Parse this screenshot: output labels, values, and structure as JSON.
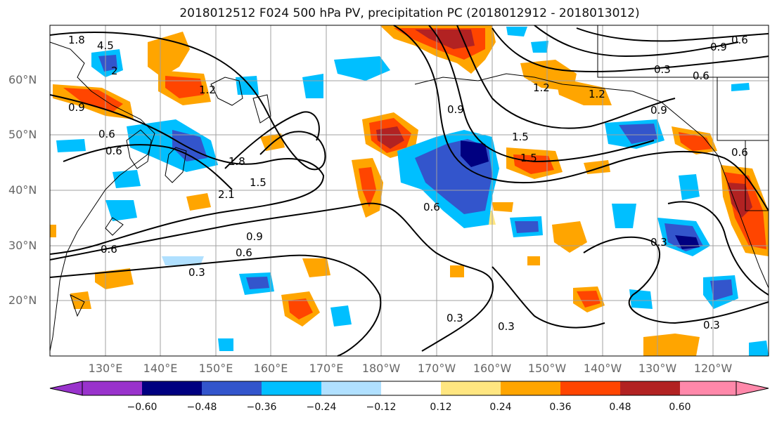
{
  "title": "2018012512 F024 500 hPa PV, precipitation PC (2018012912 - 2018013012)",
  "lat_labels": [
    "60°N",
    "50°N",
    "40°N",
    "30°N",
    "20°N"
  ],
  "lon_labels": [
    "130°E",
    "140°E",
    "150°E",
    "160°E",
    "170°E",
    "180°W",
    "170°W",
    "160°W",
    "150°W",
    "140°W",
    "130°W",
    "120°W"
  ],
  "colorbar": {
    "ticks": [
      "−0.60",
      "−0.48",
      "−0.36",
      "−0.24",
      "−0.12",
      "0.12",
      "0.24",
      "0.36",
      "0.48",
      "0.60"
    ],
    "colors": [
      "#9933cc",
      "#000080",
      "#3355cc",
      "#00bfff",
      "#b0e0ff",
      "#ffffff",
      "#ffe680",
      "#ffa500",
      "#ff4500",
      "#b22222",
      "#ff88aa"
    ]
  },
  "contour_labels": [
    "1.8",
    "4.5",
    "2",
    "1.2",
    "0.9",
    "0.6",
    "1.8",
    "2.1",
    "1.5",
    "0.9",
    "0.6",
    "0.6",
    "0.3",
    "0.6",
    "0.3",
    "0.3",
    "0.9",
    "1.5",
    "1.2",
    "1.5",
    "0.9",
    "0.6",
    "0.9",
    "0.6",
    "0.3",
    "0.3",
    "1.2",
    "0.3",
    "0.6",
    "0.6"
  ]
}
